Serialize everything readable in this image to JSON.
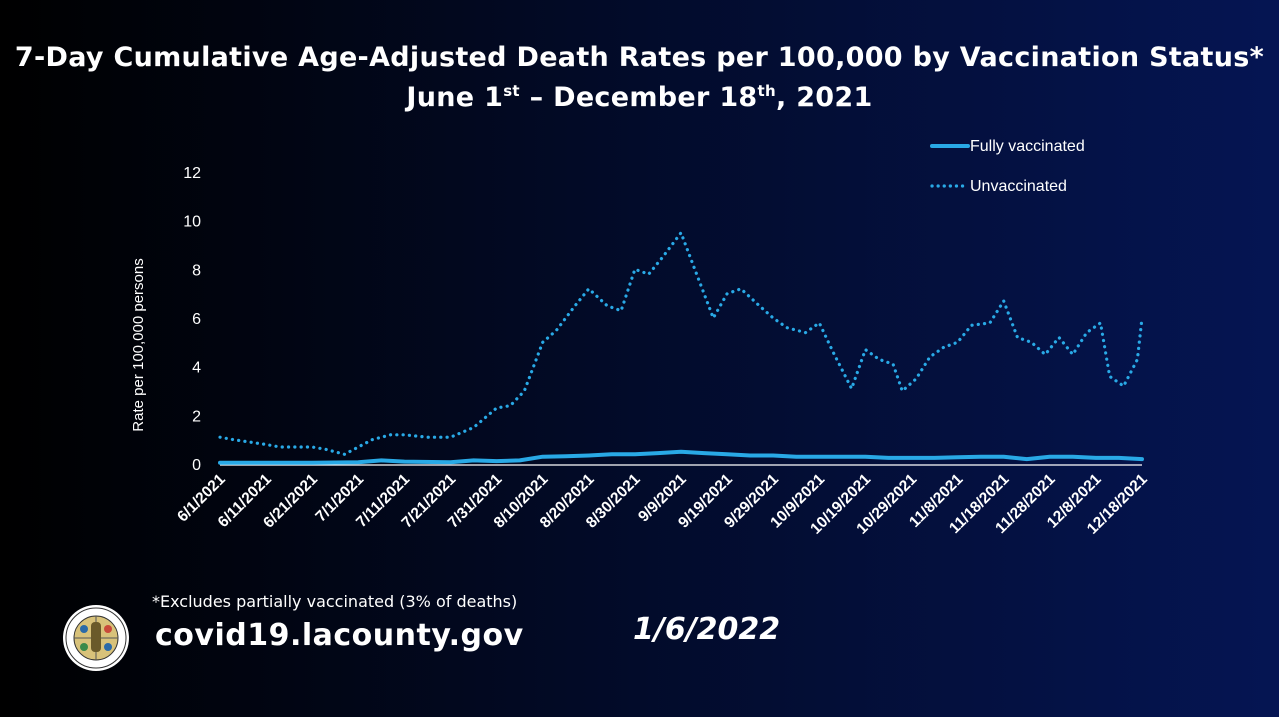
{
  "header": {
    "title_line1": "7-Day Cumulative Age-Adjusted Death Rates per 100,000 by Vaccination Status*",
    "title_line2_a": "June 1",
    "title_line2_sup1": "st",
    "title_line2_b": " – December 18",
    "title_line2_sup2": "th",
    "title_line2_c": ", 2021"
  },
  "footer": {
    "footnote": "*Excludes partially vaccinated (3% of deaths)",
    "url": "covid19.lacounty.gov",
    "date": "1/6/2022",
    "seal_icon": "county-seal-icon"
  },
  "chart_data": {
    "type": "line",
    "title": "7-Day Cumulative Age-Adjusted Death Rates per 100,000 by Vaccination Status*",
    "xlabel": "",
    "ylabel": "Rate per 100,000 persons",
    "ylim": [
      0,
      12
    ],
    "yticks": [
      0,
      2,
      4,
      6,
      8,
      10,
      12
    ],
    "grid": false,
    "legend_position": "top-right",
    "x_tick_labels": [
      "6/1/2021",
      "6/11/2021",
      "6/21/2021",
      "7/1/2021",
      "7/11/2021",
      "7/21/2021",
      "7/31/2021",
      "8/10/2021",
      "8/20/2021",
      "8/30/2021",
      "9/9/2021",
      "9/19/2021",
      "9/29/2021",
      "10/9/2021",
      "10/19/2021",
      "10/29/2021",
      "11/8/2021",
      "11/18/2021",
      "11/28/2021",
      "12/8/2021",
      "12/18/2021"
    ],
    "series": [
      {
        "name": "Fully vaccinated",
        "style": "solid",
        "color": "#29a9e6",
        "x": [
          "6/1/2021",
          "6/11/2021",
          "6/21/2021",
          "7/1/2021",
          "7/6/2021",
          "7/11/2021",
          "7/21/2021",
          "7/26/2021",
          "7/31/2021",
          "8/5/2021",
          "8/10/2021",
          "8/15/2021",
          "8/20/2021",
          "8/25/2021",
          "8/30/2021",
          "9/4/2021",
          "9/9/2021",
          "9/14/2021",
          "9/19/2021",
          "9/24/2021",
          "9/29/2021",
          "10/4/2021",
          "10/9/2021",
          "10/14/2021",
          "10/19/2021",
          "10/24/2021",
          "10/29/2021",
          "11/3/2021",
          "11/8/2021",
          "11/13/2021",
          "11/18/2021",
          "11/23/2021",
          "11/28/2021",
          "12/3/2021",
          "12/8/2021",
          "12/13/2021",
          "12/18/2021"
        ],
        "values": [
          0.05,
          0.05,
          0.05,
          0.07,
          0.15,
          0.1,
          0.07,
          0.15,
          0.12,
          0.15,
          0.3,
          0.32,
          0.35,
          0.4,
          0.4,
          0.45,
          0.5,
          0.45,
          0.4,
          0.35,
          0.35,
          0.3,
          0.3,
          0.3,
          0.3,
          0.25,
          0.25,
          0.25,
          0.28,
          0.3,
          0.3,
          0.2,
          0.3,
          0.3,
          0.25,
          0.25,
          0.2
        ]
      },
      {
        "name": "Unvaccinated",
        "style": "dotted",
        "color": "#29a9e6",
        "x": [
          "6/1/2021",
          "6/4/2021",
          "6/11/2021",
          "6/14/2021",
          "6/21/2021",
          "6/24/2021",
          "6/28/2021",
          "7/1/2021",
          "7/4/2021",
          "7/8/2021",
          "7/11/2021",
          "7/16/2021",
          "7/21/2021",
          "7/26/2021",
          "7/31/2021",
          "8/3/2021",
          "8/6/2021",
          "8/10/2021",
          "8/13/2021",
          "8/17/2021",
          "8/20/2021",
          "8/24/2021",
          "8/27/2021",
          "8/30/2021",
          "9/2/2021",
          "9/5/2021",
          "9/9/2021",
          "9/12/2021",
          "9/16/2021",
          "9/19/2021",
          "9/22/2021",
          "9/26/2021",
          "9/29/2021",
          "10/2/2021",
          "10/6/2021",
          "10/9/2021",
          "10/12/2021",
          "10/16/2021",
          "10/19/2021",
          "10/22/2021",
          "10/25/2021",
          "10/27/2021",
          "10/30/2021",
          "11/2/2021",
          "11/5/2021",
          "11/8/2021",
          "11/11/2021",
          "11/15/2021",
          "11/18/2021",
          "11/21/2021",
          "11/24/2021",
          "11/27/2021",
          "11/30/2021",
          "12/3/2021",
          "12/6/2021",
          "12/9/2021",
          "12/11/2021",
          "12/14/2021",
          "12/17/2021",
          "12/18/2021"
        ],
        "values": [
          1.1,
          1.0,
          0.8,
          0.7,
          0.7,
          0.6,
          0.4,
          0.7,
          1.0,
          1.2,
          1.2,
          1.1,
          1.1,
          1.5,
          2.3,
          2.4,
          3.0,
          5.0,
          5.5,
          6.5,
          7.2,
          6.5,
          6.3,
          8.0,
          7.8,
          8.5,
          9.5,
          8.0,
          6.0,
          7.0,
          7.2,
          6.5,
          6.0,
          5.6,
          5.4,
          5.8,
          4.6,
          3.1,
          4.7,
          4.3,
          4.1,
          3.0,
          3.5,
          4.4,
          4.8,
          5.0,
          5.7,
          5.8,
          6.7,
          5.2,
          5.0,
          4.5,
          5.2,
          4.5,
          5.4,
          5.8,
          3.6,
          3.2,
          4.3,
          6.0
        ]
      }
    ]
  }
}
